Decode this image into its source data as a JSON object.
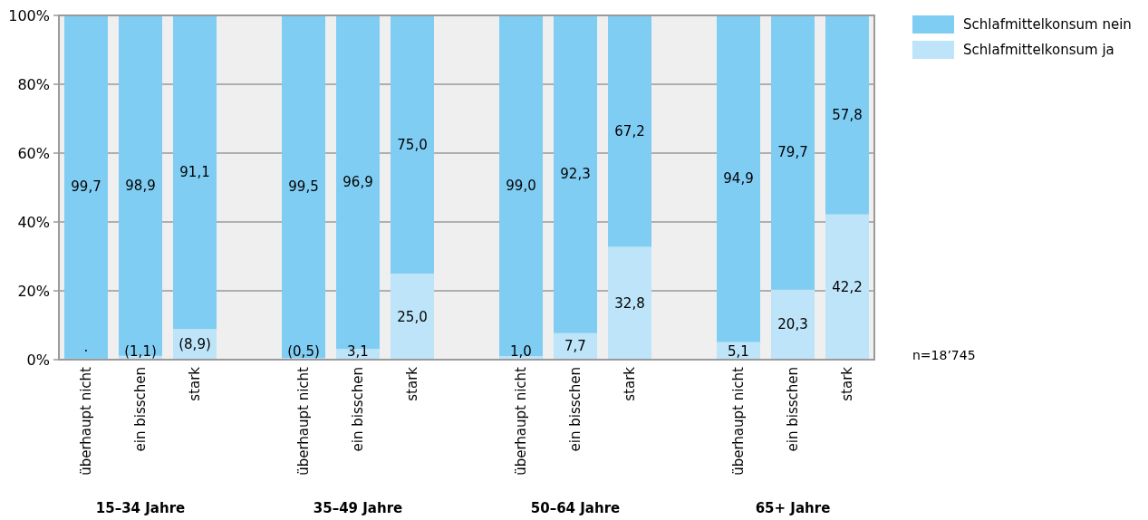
{
  "chart_data": {
    "type": "bar",
    "stacked": true,
    "categories": [
      "überhaupt nicht",
      "ein bisschen",
      "stark",
      null,
      "überhaupt nicht",
      "ein bisschen",
      "stark",
      null,
      "überhaupt nicht",
      "ein bisschen",
      "stark",
      null,
      "überhaupt nicht",
      "ein bisschen",
      "stark"
    ],
    "series": [
      {
        "name": "Schlafmittelkonsum ja",
        "color": "#bde4f8",
        "values": [
          0.3,
          1.1,
          8.9,
          null,
          0.5,
          3.1,
          25.0,
          null,
          1.0,
          7.7,
          32.8,
          null,
          5.1,
          20.3,
          42.2
        ],
        "value_labels": [
          "·",
          "(1,1)",
          "(8,9)",
          null,
          "(0,5)",
          "3,1",
          "25,0",
          null,
          "1,0",
          "7,7",
          "32,8",
          null,
          "5,1",
          "20,3",
          "42,2"
        ]
      },
      {
        "name": "Schlafmittelkonsum nein",
        "color": "#80cdf3",
        "values": [
          99.7,
          98.9,
          91.1,
          null,
          99.5,
          96.9,
          75.0,
          null,
          99.0,
          92.3,
          67.2,
          null,
          94.9,
          79.7,
          57.8
        ],
        "value_labels": [
          "99,7",
          "98,9",
          "91,1",
          null,
          "99,5",
          "96,9",
          "75,0",
          null,
          "99,0",
          "92,3",
          "67,2",
          null,
          "94,9",
          "79,7",
          "57,8"
        ]
      }
    ],
    "ylim": [
      0,
      100
    ],
    "yticks": [
      {
        "value": 0,
        "label": "0%"
      },
      {
        "value": 20,
        "label": "20%"
      },
      {
        "value": 40,
        "label": "40%"
      },
      {
        "value": 60,
        "label": "60%"
      },
      {
        "value": 80,
        "label": "80%"
      },
      {
        "value": 100,
        "label": "100%"
      }
    ],
    "grid": "y",
    "legend": "top right",
    "annotations": [
      "15–34 Jahre",
      "35–49 Jahre",
      "50–64 Jahre",
      "65+ Jahre",
      "n=18’745"
    ]
  }
}
